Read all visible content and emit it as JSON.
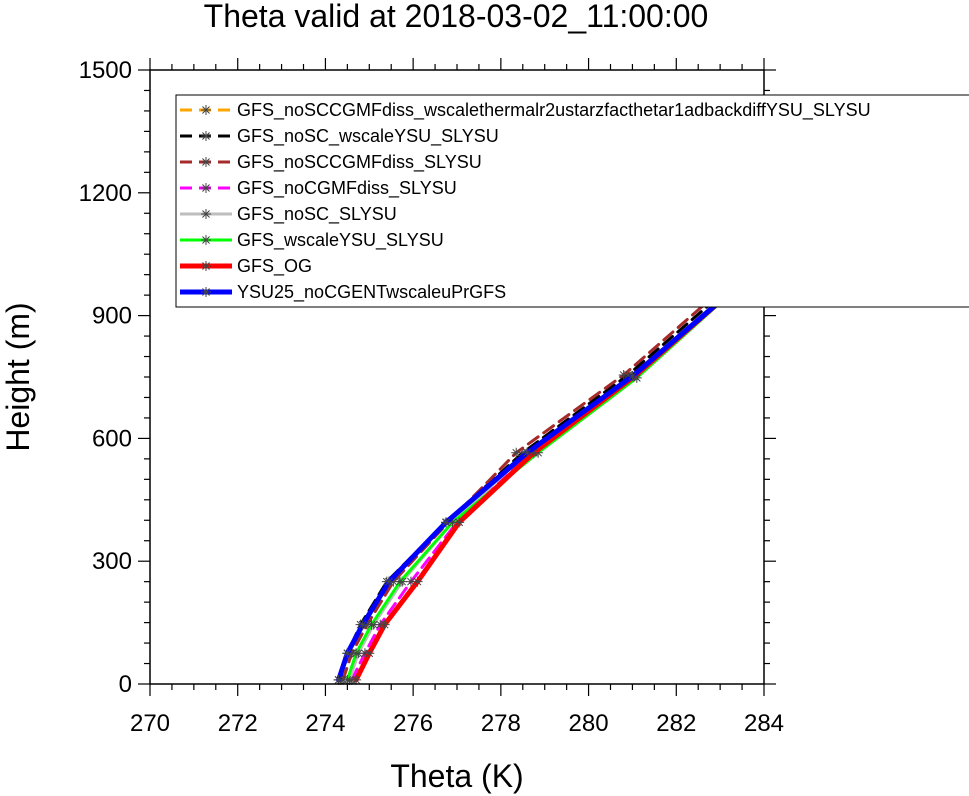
{
  "chart_data": {
    "type": "line",
    "title": "Theta valid at 2018-03-02_11:00:00",
    "xlabel": "Theta (K)",
    "ylabel": "Height (m)",
    "xlim": [
      270,
      284
    ],
    "ylim": [
      0,
      1500
    ],
    "x_ticks": [
      270,
      272,
      274,
      276,
      278,
      280,
      282,
      284
    ],
    "y_ticks": [
      0,
      300,
      600,
      900,
      1200,
      1500
    ],
    "grid": false,
    "legend_position": "top-left inside plot, extending past right edge",
    "series": [
      {
        "name": "GFS_noSCCGMFdiss_wscalethermalr2ustarzfacthetar1adbackdiffYSU_SLYSU",
        "color": "#ffa500",
        "dash": "dashed",
        "width": 3,
        "points": [
          [
            274.35,
            10
          ],
          [
            274.55,
            75
          ],
          [
            274.85,
            145
          ],
          [
            275.45,
            250
          ],
          [
            276.75,
            395
          ],
          [
            278.6,
            565
          ],
          [
            281.0,
            752
          ],
          [
            283.3,
            963
          ],
          [
            284.0,
            1050
          ]
        ]
      },
      {
        "name": "GFS_noSC_wscaleYSU_SLYSU",
        "color": "#000000",
        "dash": "dashed",
        "width": 3,
        "points": [
          [
            274.3,
            10
          ],
          [
            274.5,
            75
          ],
          [
            274.8,
            145
          ],
          [
            275.4,
            250
          ],
          [
            276.75,
            395
          ],
          [
            278.5,
            565
          ],
          [
            280.9,
            755
          ],
          [
            283.2,
            968
          ],
          [
            284.0,
            1065
          ]
        ]
      },
      {
        "name": "GFS_noSCCGMFdiss_SLYSU",
        "color": "#a52a2a",
        "dash": "dashed",
        "width": 3,
        "points": [
          [
            274.4,
            10
          ],
          [
            274.6,
            75
          ],
          [
            274.95,
            145
          ],
          [
            275.55,
            250
          ],
          [
            276.8,
            395
          ],
          [
            278.35,
            565
          ],
          [
            280.8,
            755
          ],
          [
            283.1,
            970
          ],
          [
            284.0,
            1068
          ]
        ]
      },
      {
        "name": "GFS_noCGMFdiss_SLYSU",
        "color": "#ff00ff",
        "dash": "dashed",
        "width": 3,
        "points": [
          [
            274.6,
            10
          ],
          [
            274.9,
            75
          ],
          [
            275.25,
            145
          ],
          [
            275.95,
            250
          ],
          [
            277.0,
            395
          ],
          [
            278.7,
            565
          ],
          [
            281.05,
            752
          ],
          [
            283.3,
            963
          ],
          [
            284.0,
            1055
          ]
        ]
      },
      {
        "name": "GFS_noSC_SLYSU",
        "color": "#bebebe",
        "dash": "solid",
        "width": 3,
        "points": [
          [
            274.55,
            10
          ],
          [
            274.75,
            75
          ],
          [
            275.1,
            145
          ],
          [
            275.75,
            250
          ],
          [
            276.9,
            395
          ],
          [
            278.6,
            565
          ],
          [
            281.0,
            752
          ],
          [
            283.3,
            963
          ],
          [
            284.0,
            1055
          ]
        ]
      },
      {
        "name": "GFS_wscaleYSU_SLYSU",
        "color": "#00ff00",
        "dash": "solid",
        "width": 3,
        "points": [
          [
            274.5,
            10
          ],
          [
            274.7,
            75
          ],
          [
            275.05,
            145
          ],
          [
            275.7,
            250
          ],
          [
            276.9,
            395
          ],
          [
            278.85,
            565
          ],
          [
            281.1,
            748
          ],
          [
            283.3,
            960
          ],
          [
            284.0,
            1048
          ]
        ]
      },
      {
        "name": "GFS_OG",
        "color": "#ff0000",
        "dash": "solid",
        "width": 5,
        "points": [
          [
            274.7,
            10
          ],
          [
            275.0,
            75
          ],
          [
            275.35,
            145
          ],
          [
            276.1,
            250
          ],
          [
            277.05,
            395
          ],
          [
            278.75,
            565
          ],
          [
            281.05,
            752
          ],
          [
            283.3,
            963
          ],
          [
            284.0,
            1055
          ]
        ]
      },
      {
        "name": "YSU25_noCGENTwscaleuPrGFS",
        "color": "#0000ff",
        "dash": "solid",
        "width": 5,
        "points": [
          [
            274.3,
            10
          ],
          [
            274.5,
            75
          ],
          [
            274.85,
            145
          ],
          [
            275.45,
            250
          ],
          [
            276.75,
            395
          ],
          [
            278.6,
            565
          ],
          [
            281.0,
            752
          ],
          [
            283.3,
            963
          ],
          [
            284.0,
            1055
          ]
        ]
      }
    ]
  }
}
